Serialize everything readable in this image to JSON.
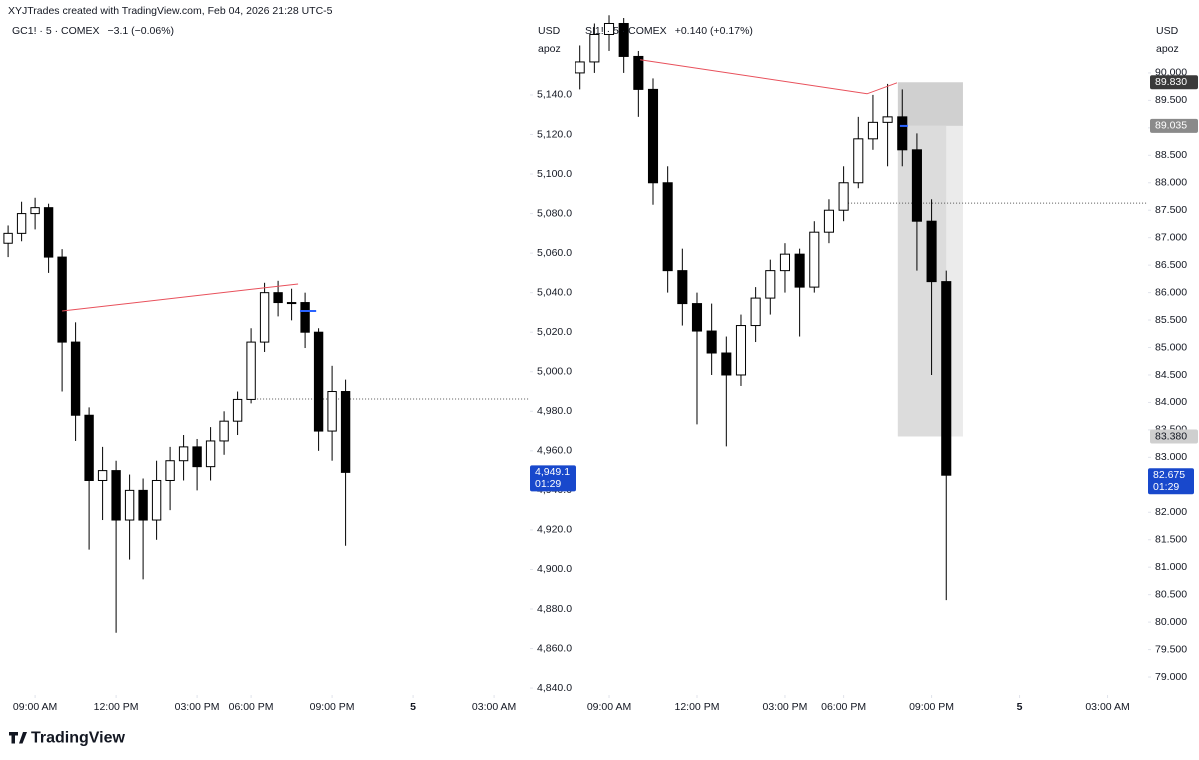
{
  "header": {
    "attribution": "XYJTrades created with TradingView.com, Feb 04, 2026 21:28 UTC-5"
  },
  "footer": {
    "logo": "TradingView"
  },
  "chart_data": [
    {
      "type": "candlestick",
      "title": "GC1! · 5 · COMEX",
      "change": "−3.1 (−0.06%)",
      "currency": "USD",
      "unit": "apoz",
      "grid": false,
      "up_color": "#ffffff",
      "down_color": "#000000",
      "x": [
        -1,
        -0.5,
        0,
        0.5,
        1,
        1.5,
        2,
        2.5,
        3,
        3.5,
        4,
        4.5,
        5,
        5.5,
        6,
        6.5,
        7,
        7.5,
        8,
        8.5,
        9,
        9.5,
        10,
        10.5,
        11,
        11.5
      ],
      "open": [
        5065,
        5070,
        5080,
        5083,
        5058,
        5015,
        4978,
        4945,
        4950,
        4925,
        4940,
        4925,
        4945,
        4955,
        4962,
        4952,
        4965,
        4975,
        4986,
        5015,
        5040,
        5035,
        5035,
        5020,
        4970,
        4990
      ],
      "high": [
        5074,
        5086,
        5088,
        5085,
        5062,
        5025,
        4982,
        4962,
        4955,
        4948,
        4946,
        4955,
        4962,
        4968,
        4966,
        4972,
        4980,
        4990,
        5022,
        5045,
        5046,
        5042,
        5040,
        5022,
        5003,
        4996
      ],
      "low": [
        5058,
        5066,
        5072,
        5050,
        4990,
        4965,
        4910,
        4925,
        4868,
        4905,
        4895,
        4915,
        4930,
        4945,
        4940,
        4945,
        4958,
        4968,
        4984,
        5010,
        5028,
        5026,
        5012,
        4960,
        4955,
        4912
      ],
      "close": [
        5070,
        5080,
        5083,
        5058,
        5015,
        4978,
        4945,
        4950,
        4925,
        4940,
        4925,
        4945,
        4955,
        4962,
        4952,
        4965,
        4975,
        4986,
        5015,
        5040,
        5035,
        5035,
        5020,
        4970,
        4990,
        4949.1
      ],
      "xlim": [
        -1.3,
        18.33
      ],
      "ylim": [
        4836.5,
        5167.8
      ],
      "xticks": [
        {
          "value": 0,
          "label": "09:00 AM"
        },
        {
          "value": 3,
          "label": "12:00 PM"
        },
        {
          "value": 6,
          "label": "03:00 PM"
        },
        {
          "value": 8,
          "label": "06:00 PM"
        },
        {
          "value": 11,
          "label": "09:00 PM"
        },
        {
          "value": 14,
          "label": "5"
        },
        {
          "value": 17,
          "label": "03:00 AM"
        }
      ],
      "yticks": [
        {
          "value": 4840,
          "label": "4,840.0"
        },
        {
          "value": 4860,
          "label": "4,860.0"
        },
        {
          "value": 4880,
          "label": "4,880.0"
        },
        {
          "value": 4900,
          "label": "4,900.0"
        },
        {
          "value": 4920,
          "label": "4,920.0"
        },
        {
          "value": 4940,
          "label": "4,940.0"
        },
        {
          "value": 4960,
          "label": "4,960.0"
        },
        {
          "value": 4980,
          "label": "4,980.0"
        },
        {
          "value": 5000,
          "label": "5,000.0"
        },
        {
          "value": 5020,
          "label": "5,020.0"
        },
        {
          "value": 5040,
          "label": "5,040.0"
        },
        {
          "value": 5060,
          "label": "5,060.0"
        },
        {
          "value": 5080,
          "label": "5,080.0"
        },
        {
          "value": 5100,
          "label": "5,100.0"
        },
        {
          "value": 5120,
          "label": "5,120.0"
        },
        {
          "value": 5140,
          "label": "5,140.0"
        }
      ],
      "last_price": {
        "value": 4949.1,
        "label": "4,949.1"
      },
      "countdown": "01:29",
      "trendline": {
        "x": [
          1.0,
          9.74
        ],
        "y": [
          5030.7,
          5044.4
        ],
        "color": "#e8505b"
      },
      "hline": {
        "x": 8.0,
        "y": 4986.2
      },
      "entry_marker": {
        "x": [
          9.81,
          10.41
        ],
        "y": [
          5030.7,
          5030.7
        ],
        "color": "#2962ff"
      }
    },
    {
      "type": "candlestick",
      "title": "SI1! · 5 · COMEX",
      "change": "+0.140 (+0.17%)",
      "currency": "USD",
      "unit": "apoz",
      "grid": false,
      "up_color": "#ffffff",
      "down_color": "#000000",
      "x": [
        -1,
        -0.5,
        0,
        0.5,
        1,
        1.5,
        2,
        2.5,
        3,
        3.5,
        4,
        4.5,
        5,
        5.5,
        6,
        6.5,
        7,
        7.5,
        8,
        8.5,
        9,
        9.5,
        10,
        10.5,
        11,
        11.5
      ],
      "open": [
        90.0,
        90.2,
        90.7,
        90.9,
        90.3,
        89.7,
        88.0,
        86.4,
        85.8,
        85.3,
        84.9,
        84.5,
        85.4,
        85.9,
        86.4,
        86.7,
        86.1,
        87.1,
        87.5,
        88.0,
        88.8,
        89.1,
        89.2,
        88.6,
        87.3,
        86.2
      ],
      "high": [
        90.5,
        90.9,
        91.05,
        91.0,
        90.4,
        89.9,
        88.3,
        86.8,
        86.0,
        85.8,
        85.2,
        85.6,
        86.1,
        86.6,
        86.9,
        86.8,
        87.3,
        87.7,
        88.3,
        89.2,
        89.6,
        89.8,
        89.7,
        88.9,
        87.7,
        86.4
      ],
      "low": [
        89.7,
        90.0,
        90.4,
        90.0,
        89.2,
        87.6,
        86.0,
        85.4,
        83.6,
        84.5,
        83.2,
        84.3,
        85.1,
        85.6,
        86.0,
        85.2,
        86.0,
        86.9,
        87.3,
        87.9,
        88.6,
        88.3,
        88.3,
        86.4,
        84.5,
        80.4
      ],
      "close": [
        90.2,
        90.7,
        90.9,
        90.3,
        89.7,
        88.0,
        86.4,
        85.8,
        85.3,
        84.9,
        84.5,
        85.4,
        85.9,
        86.4,
        86.7,
        86.1,
        87.1,
        87.5,
        88.0,
        88.8,
        89.1,
        89.2,
        88.6,
        87.3,
        86.2,
        82.675
      ],
      "xlim": [
        -1.16,
        18.38
      ],
      "ylim": [
        78.673,
        91.0
      ],
      "xticks": [
        {
          "value": 0,
          "label": "09:00 AM"
        },
        {
          "value": 3,
          "label": "12:00 PM"
        },
        {
          "value": 6,
          "label": "03:00 PM"
        },
        {
          "value": 8,
          "label": "06:00 PM"
        },
        {
          "value": 11,
          "label": "09:00 PM"
        },
        {
          "value": 14,
          "label": "5"
        },
        {
          "value": 17,
          "label": "03:00 AM"
        }
      ],
      "yticks": [
        {
          "value": 79,
          "label": "79.000"
        },
        {
          "value": 79.5,
          "label": "79.500"
        },
        {
          "value": 80,
          "label": "80.000"
        },
        {
          "value": 80.5,
          "label": "80.500"
        },
        {
          "value": 81,
          "label": "81.000"
        },
        {
          "value": 81.5,
          "label": "81.500"
        },
        {
          "value": 82,
          "label": "82.000"
        },
        {
          "value": 82.5,
          "label": "82.500"
        },
        {
          "value": 83,
          "label": "83.000"
        },
        {
          "value": 83.5,
          "label": "83.500"
        },
        {
          "value": 84,
          "label": "84.000"
        },
        {
          "value": 84.5,
          "label": "84.500"
        },
        {
          "value": 85,
          "label": "85.000"
        },
        {
          "value": 85.5,
          "label": "85.500"
        },
        {
          "value": 86,
          "label": "86.000"
        },
        {
          "value": 86.5,
          "label": "86.500"
        },
        {
          "value": 87,
          "label": "87.000"
        },
        {
          "value": 87.5,
          "label": "87.500"
        },
        {
          "value": 88,
          "label": "88.000"
        },
        {
          "value": 88.5,
          "label": "88.500"
        },
        {
          "value": 89,
          "label": "89.000"
        },
        {
          "value": 89.5,
          "label": "89.500"
        },
        {
          "value": 90,
          "label": "90.000"
        }
      ],
      "last_price": {
        "value": 82.675,
        "label": "82.675"
      },
      "countdown": "01:29",
      "trendline": {
        "x": [
          1.06,
          8.8,
          9.82
        ],
        "y": [
          90.24,
          89.62,
          89.82
        ],
        "color": "#e8505b"
      },
      "hline": {
        "x": 8.05,
        "y": 87.63
      },
      "entry_marker": {
        "x": [
          9.92,
          10.19
        ],
        "y": [
          89.035,
          89.035
        ],
        "color": "#2962ff"
      },
      "position": {
        "x": [
          9.85,
          12.07
        ],
        "stop": {
          "value": 89.83,
          "label": "89.830"
        },
        "entry": {
          "value": 89.035,
          "label": "89.035"
        },
        "target": {
          "value": 83.38,
          "label": "83.380"
        }
      }
    }
  ]
}
